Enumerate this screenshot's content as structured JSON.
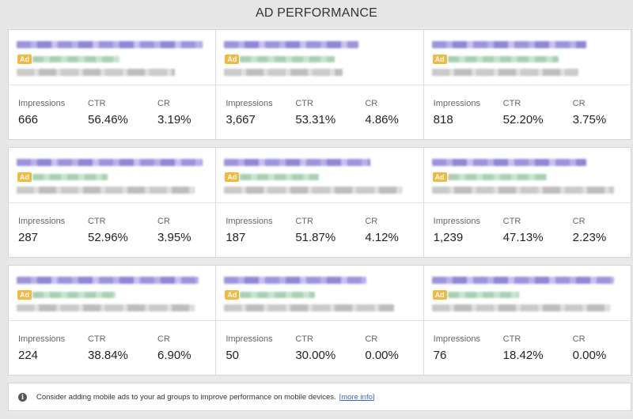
{
  "header": {
    "title": "AD PERFORMANCE"
  },
  "stat_labels": {
    "impressions": "Impressions",
    "ctr": "CTR",
    "cr": "CR"
  },
  "ad_badge": "Ad",
  "ads": [
    {
      "impressions": "666",
      "ctr": "56.46%",
      "cr": "3.19%"
    },
    {
      "impressions": "3,667",
      "ctr": "53.31%",
      "cr": "4.86%"
    },
    {
      "impressions": "818",
      "ctr": "52.20%",
      "cr": "3.75%"
    },
    {
      "impressions": "287",
      "ctr": "52.96%",
      "cr": "3.95%"
    },
    {
      "impressions": "187",
      "ctr": "51.87%",
      "cr": "4.12%"
    },
    {
      "impressions": "1,239",
      "ctr": "47.13%",
      "cr": "2.23%"
    },
    {
      "impressions": "224",
      "ctr": "38.84%",
      "cr": "6.90%"
    },
    {
      "impressions": "50",
      "ctr": "30.00%",
      "cr": "0.00%"
    },
    {
      "impressions": "76",
      "ctr": "18.42%",
      "cr": "0.00%"
    }
  ],
  "notice": {
    "icon": "info-icon",
    "text": "Consider adding mobile ads to your ad groups to improve performance on mobile devices.",
    "link_text": "[more info]"
  },
  "colors": {
    "badge": "#f4b93b",
    "link": "#3a66c4",
    "title_blur": "#9c94dc",
    "url_blur": "#a8d1b1"
  }
}
